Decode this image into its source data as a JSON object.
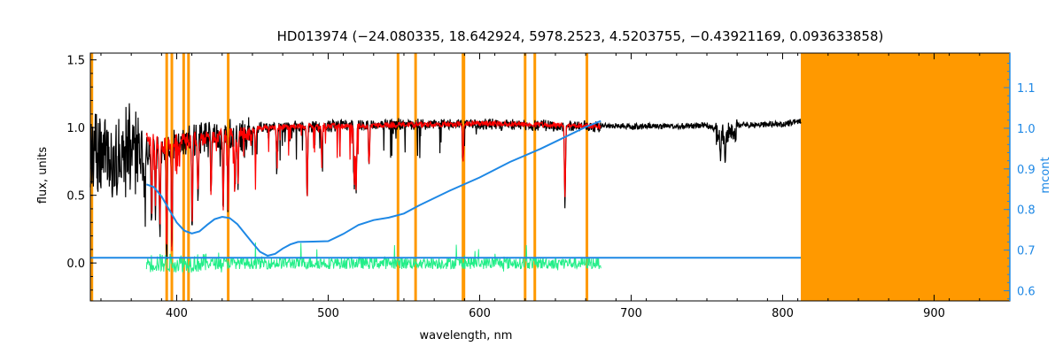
{
  "chart_data": {
    "type": "line",
    "title": "HD013974    (−24.080335, 18.642924, 5978.2523, 4.5203755, −0.43921169, 0.093633858)",
    "xlabel": "wavelength, nm",
    "ylabel": "flux, units",
    "y2label": "mcont",
    "xlim": [
      343,
      950
    ],
    "ylim": [
      -0.28,
      1.55
    ],
    "y2lim": [
      0.575,
      1.185
    ],
    "xticks": [
      400,
      500,
      600,
      700,
      800,
      900
    ],
    "yticks": [
      0.0,
      0.5,
      1.0,
      1.5
    ],
    "y2ticks": [
      0.6,
      0.7,
      0.8,
      0.9,
      1.0,
      1.1
    ],
    "ytick_labels": [
      "0.0",
      "0.5",
      "1.0",
      "1.5"
    ],
    "y2tick_labels": [
      "0.6",
      "0.7",
      "0.8",
      "0.9",
      "1.0",
      "1.1"
    ],
    "masked_band": [
      812,
      950
    ],
    "mask_lines": [
      344,
      393.4,
      396.8,
      404.6,
      407.8,
      434.0,
      546.1,
      557.7,
      589.0,
      589.6,
      630.0,
      636.4,
      670.8
    ],
    "colors": {
      "observed": "#000000",
      "model": "#ff0000",
      "residual": "#22ee88",
      "continuum": "#1e88e5",
      "mask": "#ff9900"
    },
    "series": [
      {
        "key": "observed",
        "x": [
          343,
          350,
          360,
          370,
          380,
          390,
          400,
          420,
          450,
          480,
          500,
          550,
          600,
          650,
          680,
          700,
          750,
          760,
          770,
          800,
          812
        ],
        "y": [
          1.0,
          1.05,
          0.95,
          1.05,
          0.9,
          0.9,
          0.95,
          1.0,
          1.02,
          1.03,
          1.04,
          1.05,
          1.05,
          1.04,
          1.03,
          1.02,
          1.03,
          0.98,
          1.03,
          1.04,
          1.06
        ]
      },
      {
        "key": "model",
        "x": [
          380,
          390,
          400,
          420,
          440,
          460,
          480,
          500,
          550,
          600,
          650,
          680
        ],
        "y": [
          1.0,
          0.92,
          0.95,
          0.98,
          1.0,
          1.02,
          1.03,
          1.03,
          1.04,
          1.05,
          1.04,
          1.03
        ]
      },
      {
        "key": "continuum",
        "axis": "right",
        "x": [
          380,
          385,
          390,
          395,
          400,
          405,
          410,
          415,
          420,
          425,
          430,
          435,
          440,
          445,
          450,
          455,
          460,
          465,
          470,
          475,
          480,
          490,
          500,
          510,
          520,
          530,
          540,
          550,
          560,
          580,
          600,
          620,
          640,
          660,
          670,
          680
        ],
        "y": [
          0.862,
          0.855,
          0.832,
          0.8,
          0.768,
          0.748,
          0.741,
          0.746,
          0.762,
          0.776,
          0.782,
          0.779,
          0.764,
          0.741,
          0.718,
          0.696,
          0.686,
          0.691,
          0.704,
          0.714,
          0.72,
          0.721,
          0.722,
          0.74,
          0.762,
          0.774,
          0.78,
          0.79,
          0.81,
          0.846,
          0.879,
          0.917,
          0.949,
          0.985,
          1.003,
          1.018
        ]
      },
      {
        "key": "continuum-flat",
        "axis": "right",
        "x": [
          343,
          379,
          680,
          812
        ],
        "y": [
          0.681,
          0.681,
          0.681,
          0.681
        ]
      }
    ],
    "absorption_lines": [
      {
        "x": 383.5,
        "y": 0.45
      },
      {
        "x": 386.0,
        "y": 0.55
      },
      {
        "x": 388.9,
        "y": 0.38
      },
      {
        "x": 393.4,
        "y": 0.15
      },
      {
        "x": 396.8,
        "y": 0.2
      },
      {
        "x": 410.2,
        "y": 0.35
      },
      {
        "x": 414.0,
        "y": 0.55
      },
      {
        "x": 422.7,
        "y": 0.55
      },
      {
        "x": 430.7,
        "y": 0.45
      },
      {
        "x": 434.0,
        "y": 0.45
      },
      {
        "x": 438.4,
        "y": 0.55
      },
      {
        "x": 440.5,
        "y": 0.6
      },
      {
        "x": 452.0,
        "y": 0.75
      },
      {
        "x": 466.0,
        "y": 0.8
      },
      {
        "x": 486.1,
        "y": 0.45
      },
      {
        "x": 495.8,
        "y": 0.75
      },
      {
        "x": 517.3,
        "y": 0.52
      },
      {
        "x": 518.4,
        "y": 0.5
      },
      {
        "x": 527.0,
        "y": 0.7
      },
      {
        "x": 589.0,
        "y": 0.7
      },
      {
        "x": 656.3,
        "y": 0.42
      },
      {
        "x": 759.0,
        "y": 0.82
      },
      {
        "x": 762.0,
        "y": 0.75
      }
    ]
  }
}
